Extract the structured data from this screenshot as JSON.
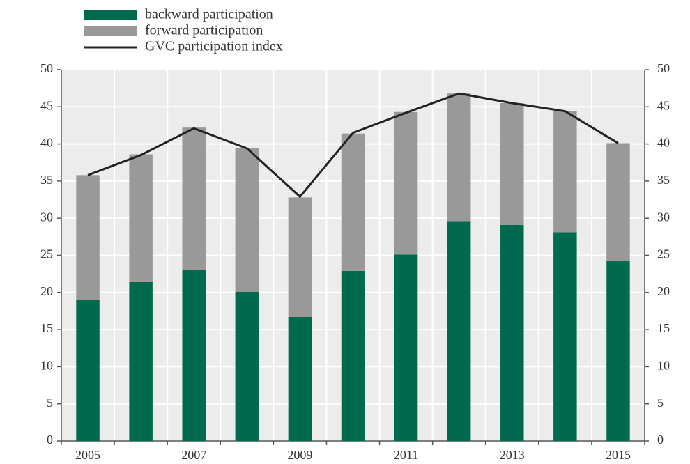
{
  "chart_data": {
    "type": "bar",
    "stacked": true,
    "categories": [
      "2005",
      null,
      "2007",
      null,
      "2009",
      null,
      "2011",
      null,
      "2013",
      null,
      "2015"
    ],
    "series": [
      {
        "name": "backward participation",
        "color": "#006a4e",
        "values": [
          19.0,
          21.4,
          23.1,
          20.1,
          16.7,
          22.9,
          25.1,
          29.6,
          29.1,
          28.1,
          24.2
        ]
      },
      {
        "name": "forward participation",
        "color": "#999999",
        "values": [
          16.8,
          17.2,
          19.1,
          19.3,
          16.1,
          18.5,
          19.2,
          17.2,
          16.4,
          16.3,
          15.9
        ]
      },
      {
        "name": "GVC participation index",
        "color": "#222222",
        "type": "line",
        "values": [
          35.8,
          38.5,
          42.1,
          39.4,
          32.9,
          41.5,
          44.2,
          46.8,
          45.5,
          44.4,
          40.1
        ]
      }
    ],
    "ylim": [
      0,
      50
    ],
    "yticks": [
      0,
      5,
      10,
      15,
      20,
      25,
      30,
      35,
      40,
      45,
      50
    ],
    "y2lim": [
      0,
      50
    ],
    "y2ticks": [
      0,
      5,
      10,
      15,
      20,
      25,
      30,
      35,
      40,
      45,
      50
    ],
    "grid": true,
    "legend": "top-left"
  }
}
